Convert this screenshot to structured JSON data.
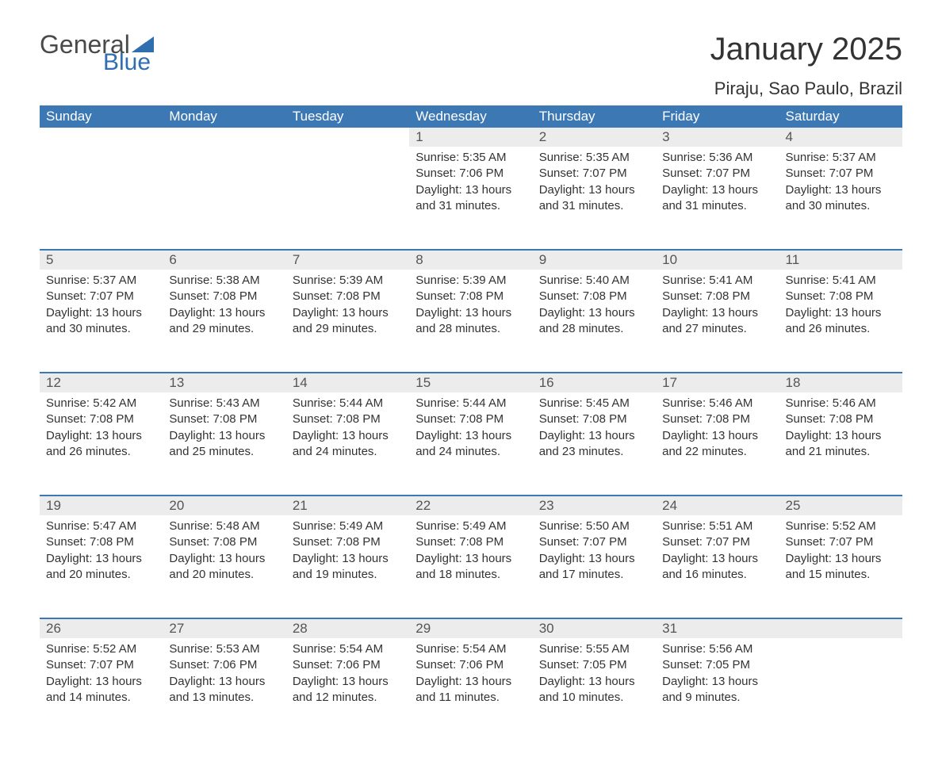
{
  "logo": {
    "text1": "General",
    "text2": "Blue",
    "flag_color": "#2f6fb0",
    "text1_color": "#4a4a4a"
  },
  "title": "January 2025",
  "location": "Piraju, Sao Paulo, Brazil",
  "colors": {
    "header_bg": "#3c78b4",
    "header_text": "#ffffff",
    "daynum_bg": "#ececec",
    "row_border": "#3c78b4",
    "body_text": "#333333",
    "background": "#ffffff"
  },
  "typography": {
    "title_fontsize": 40,
    "location_fontsize": 22,
    "header_fontsize": 17,
    "daynum_fontsize": 17,
    "cell_fontsize": 15
  },
  "weekdays": [
    "Sunday",
    "Monday",
    "Tuesday",
    "Wednesday",
    "Thursday",
    "Friday",
    "Saturday"
  ],
  "weeks": [
    [
      null,
      null,
      null,
      {
        "n": "1",
        "sunrise": "5:35 AM",
        "sunset": "7:06 PM",
        "daylight": "13 hours and 31 minutes."
      },
      {
        "n": "2",
        "sunrise": "5:35 AM",
        "sunset": "7:07 PM",
        "daylight": "13 hours and 31 minutes."
      },
      {
        "n": "3",
        "sunrise": "5:36 AM",
        "sunset": "7:07 PM",
        "daylight": "13 hours and 31 minutes."
      },
      {
        "n": "4",
        "sunrise": "5:37 AM",
        "sunset": "7:07 PM",
        "daylight": "13 hours and 30 minutes."
      }
    ],
    [
      {
        "n": "5",
        "sunrise": "5:37 AM",
        "sunset": "7:07 PM",
        "daylight": "13 hours and 30 minutes."
      },
      {
        "n": "6",
        "sunrise": "5:38 AM",
        "sunset": "7:08 PM",
        "daylight": "13 hours and 29 minutes."
      },
      {
        "n": "7",
        "sunrise": "5:39 AM",
        "sunset": "7:08 PM",
        "daylight": "13 hours and 29 minutes."
      },
      {
        "n": "8",
        "sunrise": "5:39 AM",
        "sunset": "7:08 PM",
        "daylight": "13 hours and 28 minutes."
      },
      {
        "n": "9",
        "sunrise": "5:40 AM",
        "sunset": "7:08 PM",
        "daylight": "13 hours and 28 minutes."
      },
      {
        "n": "10",
        "sunrise": "5:41 AM",
        "sunset": "7:08 PM",
        "daylight": "13 hours and 27 minutes."
      },
      {
        "n": "11",
        "sunrise": "5:41 AM",
        "sunset": "7:08 PM",
        "daylight": "13 hours and 26 minutes."
      }
    ],
    [
      {
        "n": "12",
        "sunrise": "5:42 AM",
        "sunset": "7:08 PM",
        "daylight": "13 hours and 26 minutes."
      },
      {
        "n": "13",
        "sunrise": "5:43 AM",
        "sunset": "7:08 PM",
        "daylight": "13 hours and 25 minutes."
      },
      {
        "n": "14",
        "sunrise": "5:44 AM",
        "sunset": "7:08 PM",
        "daylight": "13 hours and 24 minutes."
      },
      {
        "n": "15",
        "sunrise": "5:44 AM",
        "sunset": "7:08 PM",
        "daylight": "13 hours and 24 minutes."
      },
      {
        "n": "16",
        "sunrise": "5:45 AM",
        "sunset": "7:08 PM",
        "daylight": "13 hours and 23 minutes."
      },
      {
        "n": "17",
        "sunrise": "5:46 AM",
        "sunset": "7:08 PM",
        "daylight": "13 hours and 22 minutes."
      },
      {
        "n": "18",
        "sunrise": "5:46 AM",
        "sunset": "7:08 PM",
        "daylight": "13 hours and 21 minutes."
      }
    ],
    [
      {
        "n": "19",
        "sunrise": "5:47 AM",
        "sunset": "7:08 PM",
        "daylight": "13 hours and 20 minutes."
      },
      {
        "n": "20",
        "sunrise": "5:48 AM",
        "sunset": "7:08 PM",
        "daylight": "13 hours and 20 minutes."
      },
      {
        "n": "21",
        "sunrise": "5:49 AM",
        "sunset": "7:08 PM",
        "daylight": "13 hours and 19 minutes."
      },
      {
        "n": "22",
        "sunrise": "5:49 AM",
        "sunset": "7:08 PM",
        "daylight": "13 hours and 18 minutes."
      },
      {
        "n": "23",
        "sunrise": "5:50 AM",
        "sunset": "7:07 PM",
        "daylight": "13 hours and 17 minutes."
      },
      {
        "n": "24",
        "sunrise": "5:51 AM",
        "sunset": "7:07 PM",
        "daylight": "13 hours and 16 minutes."
      },
      {
        "n": "25",
        "sunrise": "5:52 AM",
        "sunset": "7:07 PM",
        "daylight": "13 hours and 15 minutes."
      }
    ],
    [
      {
        "n": "26",
        "sunrise": "5:52 AM",
        "sunset": "7:07 PM",
        "daylight": "13 hours and 14 minutes."
      },
      {
        "n": "27",
        "sunrise": "5:53 AM",
        "sunset": "7:06 PM",
        "daylight": "13 hours and 13 minutes."
      },
      {
        "n": "28",
        "sunrise": "5:54 AM",
        "sunset": "7:06 PM",
        "daylight": "13 hours and 12 minutes."
      },
      {
        "n": "29",
        "sunrise": "5:54 AM",
        "sunset": "7:06 PM",
        "daylight": "13 hours and 11 minutes."
      },
      {
        "n": "30",
        "sunrise": "5:55 AM",
        "sunset": "7:05 PM",
        "daylight": "13 hours and 10 minutes."
      },
      {
        "n": "31",
        "sunrise": "5:56 AM",
        "sunset": "7:05 PM",
        "daylight": "13 hours and 9 minutes."
      },
      null
    ]
  ],
  "labels": {
    "sunrise": "Sunrise: ",
    "sunset": "Sunset: ",
    "daylight": "Daylight: "
  }
}
